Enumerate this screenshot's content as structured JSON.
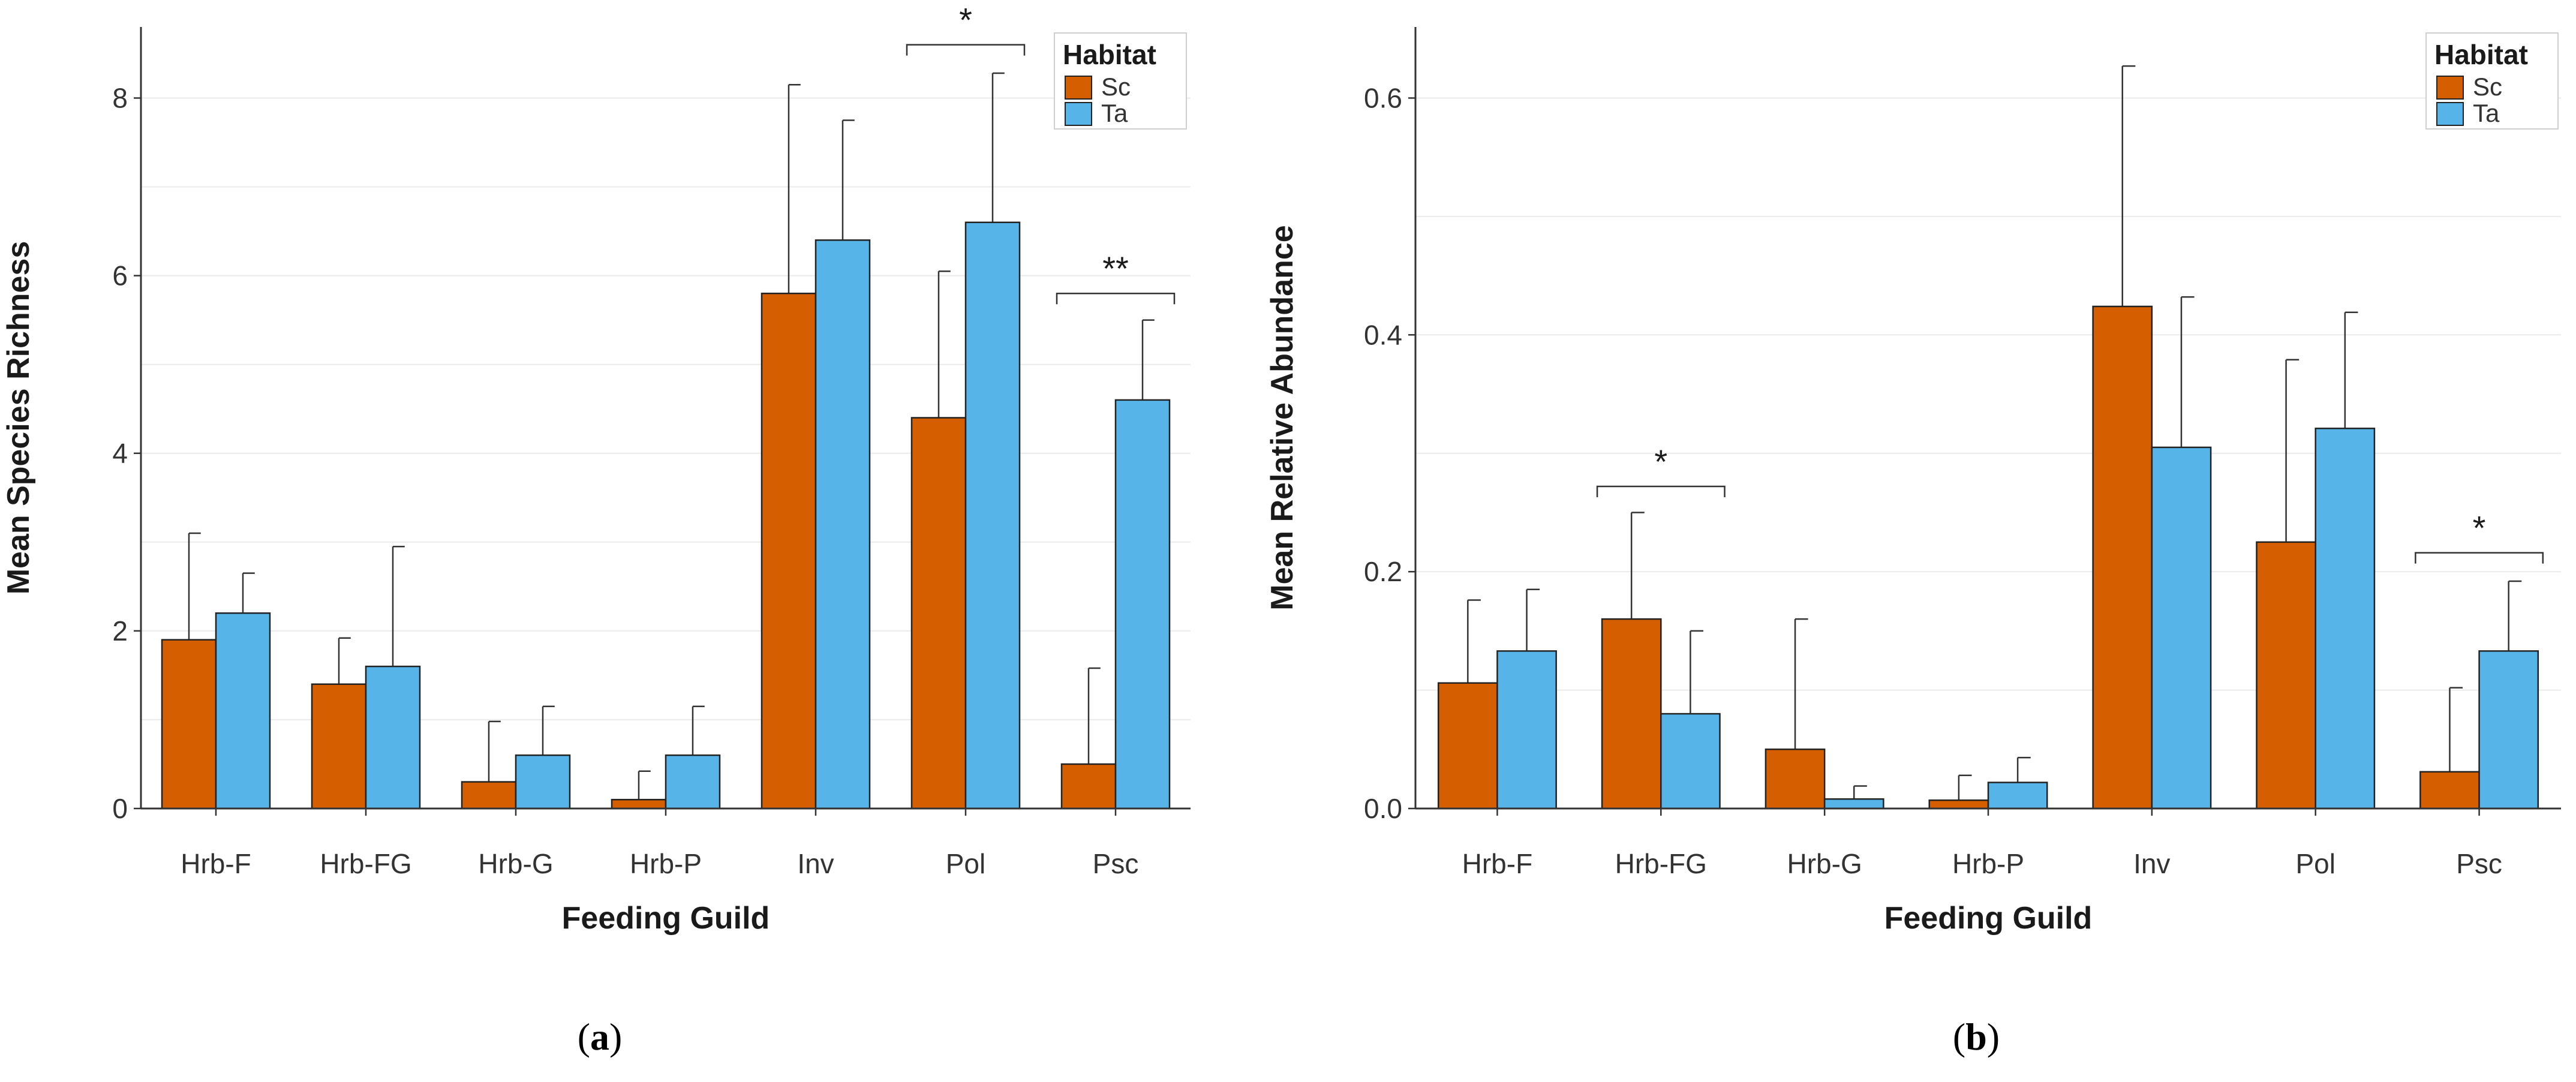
{
  "chart_data": [
    {
      "type": "bar",
      "panel": "(a)",
      "panel_letter": "a",
      "xlabel": "Feeding Guild",
      "ylabel": "Mean Species Richness",
      "ylim": [
        0,
        8.8
      ],
      "yticks": [
        0,
        2,
        4,
        6,
        8
      ],
      "ytick_labels": [
        "0",
        "2",
        "4",
        "6",
        "8"
      ],
      "categories": [
        "Hrb-F",
        "Hrb-FG",
        "Hrb-G",
        "Hrb-P",
        "Inv",
        "Pol",
        "Psc"
      ],
      "legend_title": "Habitat",
      "legend_position": "top-right",
      "grid": true,
      "series": [
        {
          "name": "Sc",
          "color": "#d45e00",
          "values": [
            1.9,
            1.4,
            0.3,
            0.1,
            5.8,
            4.4,
            0.5
          ],
          "errors": [
            1.2,
            0.52,
            0.68,
            0.32,
            2.35,
            1.65,
            1.08
          ]
        },
        {
          "name": "Ta",
          "color": "#56b4e9",
          "values": [
            2.2,
            1.6,
            0.6,
            0.6,
            6.4,
            6.6,
            4.6
          ],
          "errors": [
            0.45,
            1.35,
            0.55,
            0.55,
            1.35,
            1.68,
            0.9
          ]
        }
      ],
      "significance": [
        {
          "category": "Pol",
          "label": "*",
          "level": 8.6
        },
        {
          "category": "Psc",
          "label": "**",
          "level": 5.8
        }
      ]
    },
    {
      "type": "bar",
      "panel": "(b)",
      "panel_letter": "b",
      "xlabel": "Feeding Guild",
      "ylabel": "Mean Relative Abundance",
      "ylim": [
        0,
        0.66
      ],
      "yticks": [
        0,
        0.2,
        0.4,
        0.6
      ],
      "ytick_labels": [
        "0.0",
        "0.2",
        "0.4",
        "0.6"
      ],
      "categories": [
        "Hrb-F",
        "Hrb-FG",
        "Hrb-G",
        "Hrb-P",
        "Inv",
        "Pol",
        "Psc"
      ],
      "legend_title": "Habitat",
      "legend_position": "top-right",
      "grid": true,
      "series": [
        {
          "name": "Sc",
          "color": "#d45e00",
          "values": [
            0.106,
            0.16,
            0.05,
            0.007,
            0.424,
            0.225,
            0.031
          ],
          "errors": [
            0.07,
            0.09,
            0.11,
            0.021,
            0.203,
            0.154,
            0.071
          ]
        },
        {
          "name": "Ta",
          "color": "#56b4e9",
          "values": [
            0.133,
            0.08,
            0.008,
            0.022,
            0.305,
            0.321,
            0.133
          ],
          "errors": [
            0.052,
            0.07,
            0.011,
            0.021,
            0.127,
            0.098,
            0.059
          ]
        }
      ],
      "significance": [
        {
          "category": "Hrb-FG",
          "label": "*",
          "level": 0.272
        },
        {
          "category": "Psc",
          "label": "*",
          "level": 0.216
        }
      ]
    }
  ]
}
